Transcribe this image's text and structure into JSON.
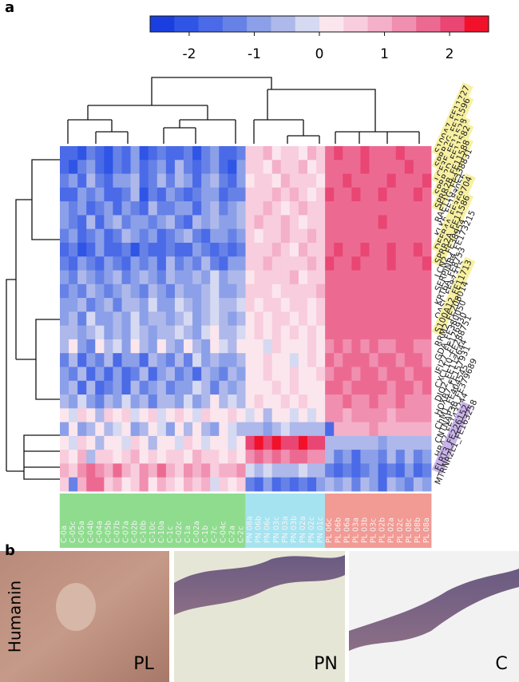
{
  "panel_a": {
    "label": "a"
  },
  "chart_data": {
    "type": "heatmap",
    "clim": [
      -2.6,
      2.6
    ],
    "cticks": [
      -2,
      -1,
      0,
      1,
      2
    ],
    "colorscale": [
      "#1a3fe0",
      "#2f55e6",
      "#4a6ae8",
      "#6782e6",
      "#8ba0e8",
      "#aeb8ea",
      "#d6d9f2",
      "#fbe6ee",
      "#f8cddd",
      "#f4b0c8",
      "#f08fb0",
      "#ec6a92",
      "#e94674",
      "#f2112a"
    ],
    "rows": [
      "S100A7_FE11727",
      "SPRR2G_FE11596",
      "LCE3E_FE11528",
      "SPRR2D_FE11582",
      "SPRR2B_FE11588",
      "RAET1G_FE338831",
      "KLK6_FE183056",
      "DEFB4A_FE369704",
      "SPRR2A_FE11586",
      "LCN2_FE38954",
      "SERPINB4_FE173215",
      "KRT6A_FE8753",
      "OASL_FE87315",
      "S100A12_FE11713",
      "RRM2_FE208014",
      "GDA_FE380050",
      "IFI27_FE126930",
      "CXCL10_FE288751",
      "DIO2_FE112644",
      "HOXB7_FE157931",
      "ChM1_FE404545",
      "CNTNAP3B_FE379689",
      "HBA2_FE143244",
      "FLRT3_FE226152",
      "MTRNR2L1_FE163258"
    ],
    "row_highlight": [
      "#f7f0a0",
      "#f7f0a0",
      "#f7f0a0",
      "#f7f0a0",
      "#f7f0a0",
      null,
      null,
      "#f7f0a0",
      "#f7f0a0",
      null,
      null,
      null,
      null,
      "#f7f0a0",
      null,
      null,
      null,
      null,
      null,
      null,
      null,
      null,
      null,
      "#c9b3ea",
      null
    ],
    "columns": [
      "C-0a",
      "C-05c",
      "C-05a",
      "C-04b",
      "C-04a",
      "C-05b",
      "C-07b",
      "C-07a",
      "C-02b",
      "C-10b",
      "C-10c",
      "C-10a",
      "C-1c",
      "C-02c",
      "C-1a",
      "C-02a",
      "C-1b",
      "C-7c",
      "C-04c",
      "C-2a",
      "C-2c",
      "PN 08a",
      "PN 06b",
      "PN 06c",
      "PN 03c",
      "PN 03a",
      "PN 03b",
      "PN 02a",
      "PN 02c",
      "PN 01c",
      "PL 06c",
      "PL 06b",
      "PL 06a",
      "PL 03a",
      "PL 03b",
      "PL 03c",
      "PL 02b",
      "PL 02a",
      "PL 02c",
      "PL 08c",
      "PL 08b",
      "PL 08a"
    ],
    "column_colors": [
      "#8fdc8f",
      "#8fdc8f",
      "#8fdc8f",
      "#8fdc8f",
      "#8fdc8f",
      "#8fdc8f",
      "#8fdc8f",
      "#8fdc8f",
      "#8fdc8f",
      "#8fdc8f",
      "#8fdc8f",
      "#8fdc8f",
      "#8fdc8f",
      "#8fdc8f",
      "#8fdc8f",
      "#8fdc8f",
      "#8fdc8f",
      "#8fdc8f",
      "#8fdc8f",
      "#8fdc8f",
      "#8fdc8f",
      "#a6e3f0",
      "#a6e3f0",
      "#a6e3f0",
      "#a6e3f0",
      "#a6e3f0",
      "#a6e3f0",
      "#a6e3f0",
      "#a6e3f0",
      "#a6e3f0",
      "#f29a94",
      "#f29a94",
      "#f29a94",
      "#f29a94",
      "#f29a94",
      "#f29a94",
      "#f29a94",
      "#f29a94",
      "#f29a94",
      "#f29a94",
      "#f29a94",
      "#f29a94"
    ],
    "values": [
      [
        -1.8,
        -1.5,
        -2.0,
        -1.2,
        -1.6,
        -1.9,
        -1.4,
        -1.7,
        -1.1,
        -2.0,
        -1.5,
        -1.3,
        -1.8,
        -1.6,
        -1.2,
        -1.9,
        -1.4,
        -1.0,
        -1.7,
        -1.5,
        -1.3,
        0.6,
        0.4,
        0.8,
        0.3,
        0.5,
        0.7,
        0.2,
        0.9,
        0.4,
        1.8,
        1.9,
        1.7,
        1.8,
        1.9,
        1.8,
        1.7,
        1.8,
        1.9,
        1.8,
        1.7,
        1.8
      ],
      [
        -1.6,
        -1.9,
        -1.3,
        -0.8,
        -1.7,
        -2.1,
        -1.2,
        -1.5,
        -0.9,
        -1.8,
        -1.4,
        -1.0,
        -1.6,
        -0.7,
        -1.3,
        -1.8,
        -1.2,
        -0.8,
        -1.5,
        -1.9,
        -1.1,
        0.5,
        0.7,
        0.3,
        0.9,
        0.6,
        0.4,
        0.8,
        0.2,
        0.5,
        1.7,
        1.8,
        1.8,
        1.6,
        1.9,
        1.7,
        1.8,
        1.8,
        1.7,
        1.9,
        1.8,
        1.7
      ],
      [
        -1.2,
        -1.0,
        -1.7,
        -0.6,
        -1.4,
        -1.8,
        -0.9,
        -1.1,
        -0.5,
        -1.6,
        -1.2,
        -0.7,
        -1.4,
        -0.4,
        -1.0,
        -1.5,
        -0.8,
        -0.6,
        -1.2,
        -1.6,
        -0.9,
        0.3,
        0.6,
        0.5,
        0.2,
        0.8,
        0.6,
        0.4,
        0.7,
        0.3,
        1.8,
        1.7,
        1.9,
        1.7,
        1.8,
        1.8,
        1.6,
        1.9,
        1.8,
        1.7,
        1.8,
        1.9
      ],
      [
        -1.5,
        -1.7,
        -1.1,
        -1.4,
        -0.9,
        -1.6,
        -1.8,
        -1.2,
        -0.7,
        -1.9,
        -1.3,
        -1.5,
        -1.0,
        -1.2,
        -1.7,
        -1.4,
        -0.9,
        -1.1,
        -1.6,
        -1.2,
        -1.4,
        0.7,
        0.5,
        0.6,
        0.8,
        0.4,
        0.9,
        0.6,
        0.3,
        0.7,
        1.9,
        1.8,
        1.8,
        1.9,
        1.7,
        1.8,
        1.9,
        1.7,
        1.8,
        1.8,
        1.9,
        1.8
      ],
      [
        -1.1,
        -1.4,
        -0.8,
        -1.6,
        -1.2,
        -1.0,
        -1.5,
        -0.9,
        -1.3,
        -1.7,
        -0.6,
        -1.2,
        -1.4,
        -0.8,
        -1.1,
        -1.6,
        -1.0,
        -0.5,
        -1.3,
        -1.0,
        -0.7,
        0.4,
        0.6,
        0.9,
        0.5,
        0.3,
        0.7,
        0.8,
        0.5,
        0.6,
        1.7,
        1.8,
        1.7,
        1.8,
        1.7,
        1.6,
        1.8,
        1.7,
        1.8,
        1.7,
        1.8,
        1.7
      ],
      [
        -0.9,
        -1.2,
        -1.5,
        -0.7,
        -1.8,
        -1.1,
        -0.6,
        -1.3,
        -1.0,
        -0.8,
        -1.4,
        -0.9,
        -0.5,
        -1.2,
        -1.5,
        -0.7,
        -1.1,
        -0.4,
        -1.0,
        -0.8,
        -0.6,
        0.5,
        0.8,
        0.4,
        0.6,
        0.9,
        0.5,
        0.3,
        0.7,
        0.6,
        1.6,
        1.7,
        1.8,
        1.7,
        1.8,
        1.7,
        1.9,
        1.8,
        1.7,
        1.8,
        1.7,
        1.6
      ],
      [
        -1.4,
        -1.0,
        -1.6,
        -1.2,
        -0.8,
        -1.5,
        -1.3,
        -0.7,
        -1.1,
        -1.4,
        -0.9,
        -1.6,
        -1.2,
        -1.0,
        -0.6,
        -1.3,
        -1.5,
        -0.8,
        -1.0,
        -1.2,
        -0.9,
        0.6,
        0.3,
        0.7,
        0.5,
        0.8,
        0.4,
        0.6,
        0.9,
        0.5,
        1.7,
        1.6,
        1.7,
        1.8,
        1.6,
        1.7,
        1.7,
        1.8,
        1.6,
        1.7,
        1.8,
        1.7
      ],
      [
        -1.7,
        -1.3,
        -1.9,
        -1.5,
        -1.1,
        -1.8,
        -1.6,
        -1.4,
        -1.9,
        -1.2,
        -1.7,
        -1.5,
        -1.3,
        -1.8,
        -1.6,
        -1.0,
        -1.4,
        -1.7,
        -1.2,
        -1.5,
        -1.3,
        0.4,
        0.7,
        0.5,
        0.9,
        0.6,
        0.3,
        0.8,
        0.5,
        0.7,
        1.8,
        1.9,
        1.8,
        1.7,
        1.9,
        1.8,
        1.8,
        1.9,
        1.7,
        1.8,
        1.9,
        1.8
      ],
      [
        -1.3,
        -1.6,
        -1.0,
        -1.4,
        -1.7,
        -0.9,
        -1.2,
        -1.5,
        -0.8,
        -1.3,
        -1.1,
        -1.6,
        -0.7,
        -1.4,
        -1.0,
        -1.2,
        -0.6,
        -1.3,
        -1.5,
        -0.9,
        -1.1,
        0.6,
        0.5,
        0.8,
        0.4,
        0.7,
        0.6,
        0.5,
        0.8,
        0.4,
        1.9,
        1.8,
        1.7,
        1.9,
        1.8,
        1.7,
        1.8,
        1.9,
        1.8,
        1.7,
        1.8,
        1.9
      ],
      [
        -1.0,
        -1.3,
        -0.6,
        -1.1,
        -1.4,
        -0.8,
        -0.5,
        -1.2,
        -0.9,
        -0.4,
        -1.0,
        -1.3,
        -0.6,
        -0.9,
        -1.1,
        -0.5,
        -0.8,
        -0.3,
        -1.0,
        -0.7,
        -0.5,
        0.3,
        0.6,
        0.4,
        0.7,
        0.5,
        0.8,
        0.2,
        0.6,
        0.4,
        1.6,
        1.7,
        1.6,
        1.7,
        1.8,
        1.6,
        1.7,
        1.6,
        1.7,
        1.8,
        1.6,
        1.7
      ],
      [
        -1.2,
        -0.9,
        -1.4,
        -0.7,
        -1.1,
        -1.3,
        -0.8,
        -0.4,
        -1.0,
        -1.2,
        -0.6,
        -0.9,
        -1.3,
        -0.5,
        -0.8,
        -1.1,
        -0.7,
        -0.3,
        -0.9,
        -1.0,
        -0.6,
        0.5,
        0.4,
        0.6,
        0.3,
        0.7,
        0.5,
        0.6,
        0.4,
        0.8,
        1.7,
        1.6,
        1.8,
        1.7,
        1.6,
        1.7,
        1.8,
        1.7,
        1.6,
        1.7,
        1.7,
        1.8
      ],
      [
        -0.8,
        -1.1,
        -0.5,
        -1.3,
        -0.9,
        -0.6,
        -1.2,
        -0.4,
        -0.7,
        -1.0,
        -0.3,
        -0.8,
        -1.1,
        -0.2,
        -0.6,
        -0.9,
        -0.4,
        -0.1,
        -0.7,
        -0.5,
        -0.3,
        0.4,
        0.2,
        0.5,
        0.6,
        0.3,
        0.4,
        0.7,
        0.3,
        0.5,
        1.5,
        1.6,
        1.5,
        1.6,
        1.7,
        1.5,
        1.6,
        1.5,
        1.6,
        1.7,
        1.5,
        1.6
      ],
      [
        -1.0,
        -0.6,
        -1.2,
        -0.3,
        -0.9,
        -1.1,
        -0.5,
        -0.8,
        -0.2,
        -1.0,
        -0.7,
        -0.4,
        -0.9,
        -0.6,
        -0.1,
        -0.8,
        -0.5,
        -0.2,
        -0.7,
        -0.9,
        -0.4,
        0.3,
        0.5,
        0.2,
        0.4,
        0.6,
        0.3,
        0.5,
        0.2,
        0.4,
        1.6,
        1.5,
        1.6,
        1.7,
        1.5,
        1.6,
        1.6,
        1.5,
        1.7,
        1.6,
        1.5,
        1.6
      ],
      [
        -0.7,
        -0.4,
        -1.0,
        -0.6,
        -0.2,
        -0.9,
        -0.5,
        -0.8,
        -0.3,
        -0.6,
        -1.1,
        -0.4,
        -0.7,
        -0.2,
        -0.5,
        -0.9,
        -0.3,
        0.1,
        -0.6,
        -0.4,
        -0.2,
        0.2,
        0.4,
        0.3,
        0.5,
        0.2,
        0.6,
        0.3,
        0.4,
        0.2,
        1.5,
        1.6,
        1.7,
        1.5,
        1.6,
        1.5,
        1.7,
        1.6,
        1.5,
        1.6,
        1.7,
        1.5
      ],
      [
        -0.4,
        0.1,
        -0.8,
        -1.2,
        0.2,
        -0.6,
        -0.3,
        -1.0,
        0.3,
        -0.5,
        -0.9,
        0.0,
        -0.7,
        -1.1,
        0.1,
        -0.4,
        -0.8,
        0.2,
        -0.3,
        -0.6,
        0.0,
        0.1,
        0.3,
        -0.1,
        0.4,
        0.2,
        0.0,
        0.3,
        0.5,
        0.1,
        1.4,
        1.5,
        1.3,
        1.6,
        1.4,
        1.5,
        1.3,
        1.4,
        1.5,
        1.6,
        1.4,
        1.3
      ],
      [
        -1.3,
        -0.5,
        -1.6,
        -0.9,
        -1.2,
        -0.4,
        -1.5,
        -0.8,
        -1.1,
        -1.7,
        -0.6,
        -1.0,
        -1.4,
        -0.7,
        -1.2,
        -0.3,
        -0.9,
        -0.5,
        -1.1,
        -0.8,
        -0.4,
        0.2,
        0.0,
        0.4,
        0.1,
        0.3,
        -0.2,
        0.2,
        0.5,
        0.0,
        1.5,
        1.4,
        1.5,
        1.6,
        1.5,
        1.3,
        1.5,
        1.6,
        1.4,
        1.5,
        1.5,
        1.4
      ],
      [
        -0.9,
        -1.4,
        -0.6,
        -1.7,
        -1.0,
        -1.5,
        -0.8,
        -1.8,
        -1.2,
        -0.7,
        -1.6,
        -1.1,
        -0.5,
        -1.3,
        -0.9,
        -1.6,
        -0.4,
        -1.0,
        -1.4,
        -0.6,
        -0.8,
        0.3,
        0.1,
        0.5,
        0.2,
        0.0,
        0.4,
        0.3,
        0.1,
        0.6,
        1.4,
        1.6,
        1.5,
        1.4,
        1.6,
        1.5,
        1.4,
        1.5,
        1.6,
        1.4,
        1.5,
        1.6
      ],
      [
        -1.1,
        -0.7,
        -1.5,
        -0.4,
        -1.8,
        -1.2,
        -0.9,
        -1.6,
        -0.5,
        -1.3,
        -1.0,
        -0.6,
        -1.4,
        -0.8,
        -1.1,
        -0.3,
        -0.7,
        -1.2,
        -0.5,
        -0.9,
        -0.6,
        0.0,
        0.3,
        0.1,
        0.4,
        0.2,
        0.5,
        0.0,
        0.3,
        0.2,
        1.6,
        1.5,
        1.4,
        1.5,
        1.6,
        1.5,
        1.5,
        1.4,
        1.6,
        1.5,
        1.4,
        1.5
      ],
      [
        -0.6,
        -1.0,
        -0.3,
        -0.8,
        -1.4,
        -0.5,
        -1.1,
        -0.2,
        -0.9,
        -0.6,
        -1.3,
        -0.4,
        -0.7,
        -1.0,
        -0.2,
        -0.8,
        -0.5,
        0.1,
        -0.6,
        -0.3,
        -0.5,
        0.2,
        0.4,
        0.0,
        0.3,
        0.5,
        0.1,
        0.4,
        0.2,
        0.3,
        1.3,
        1.4,
        1.5,
        1.3,
        1.4,
        1.6,
        1.4,
        1.3,
        1.5,
        1.4,
        1.3,
        1.4
      ],
      [
        0.3,
        -0.2,
        0.5,
        0.1,
        -0.4,
        0.4,
        0.0,
        0.6,
        -0.3,
        0.2,
        0.5,
        -0.1,
        0.3,
        0.7,
        0.1,
        -0.2,
        0.4,
        0.2,
        0.0,
        0.5,
        0.3,
        -0.2,
        0.1,
        -0.4,
        0.2,
        0.0,
        -0.3,
        0.1,
        -0.1,
        0.2,
        1.2,
        1.3,
        1.1,
        1.4,
        1.2,
        1.3,
        1.2,
        1.1,
        1.3,
        1.4,
        1.2,
        1.3
      ],
      [
        -0.8,
        0.2,
        -1.0,
        -0.4,
        0.3,
        -0.7,
        -0.2,
        0.1,
        -0.9,
        -0.5,
        0.2,
        -0.3,
        -1.1,
        0.0,
        -0.6,
        0.3,
        -0.4,
        -0.8,
        0.1,
        -0.2,
        -0.5,
        -0.6,
        -0.4,
        -0.8,
        -0.5,
        -0.3,
        -0.7,
        -0.4,
        -0.6,
        -0.5,
        -1.6,
        1.0,
        1.1,
        0.9,
        1.0,
        1.2,
        0.9,
        1.1,
        1.0,
        0.8,
        1.1,
        1.0
      ],
      [
        0.2,
        -0.3,
        0.4,
        0.1,
        -0.5,
        0.3,
        0.0,
        -0.2,
        0.5,
        0.2,
        -0.4,
        0.1,
        0.3,
        -0.1,
        0.4,
        0.0,
        -0.3,
        0.2,
        0.1,
        -0.2,
        0.3,
        2.2,
        2.3,
        2.1,
        2.4,
        2.2,
        2.0,
        2.3,
        2.1,
        2.2,
        -0.6,
        -0.5,
        -0.7,
        -0.4,
        -0.6,
        -0.5,
        -0.8,
        -0.5,
        -0.6,
        -0.4,
        -0.7,
        -0.5
      ],
      [
        0.6,
        0.3,
        0.8,
        -0.5,
        0.5,
        0.7,
        0.2,
        0.4,
        0.9,
        0.1,
        0.6,
        0.3,
        0.5,
        0.7,
        0.2,
        0.8,
        0.4,
        0.6,
        0.1,
        0.5,
        0.3,
        1.4,
        1.6,
        1.2,
        1.8,
        1.3,
        1.5,
        1.7,
        1.2,
        1.4,
        -0.4,
        -1.2,
        -0.8,
        -1.5,
        -1.1,
        -0.9,
        -1.4,
        -0.7,
        -1.3,
        -0.6,
        -1.2,
        -0.9
      ],
      [
        1.0,
        0.6,
        1.4,
        1.6,
        1.2,
        0.8,
        1.5,
        1.1,
        0.7,
        1.3,
        0.9,
        1.6,
        1.0,
        0.5,
        1.2,
        0.8,
        1.4,
        0.6,
        1.1,
        0.9,
        1.3,
        -0.3,
        -0.6,
        -0.2,
        -0.5,
        -0.4,
        -0.7,
        -0.3,
        -0.5,
        -0.4,
        -1.3,
        -1.6,
        -1.2,
        -1.8,
        -1.4,
        -1.0,
        -1.7,
        -1.3,
        -1.5,
        -1.1,
        -1.6,
        -1.2
      ],
      [
        0.4,
        -1.2,
        0.8,
        1.5,
        1.8,
        0.6,
        1.0,
        0.3,
        0.7,
        1.2,
        0.2,
        0.9,
        0.5,
        0.1,
        1.1,
        0.4,
        0.8,
        -0.2,
        0.6,
        0.3,
        0.5,
        -1.4,
        -1.8,
        -1.0,
        -1.6,
        -1.2,
        -1.7,
        -1.3,
        -1.5,
        -1.1,
        -0.6,
        -0.9,
        -0.4,
        -1.2,
        -0.7,
        -1.0,
        -1.5,
        -0.5,
        -0.8,
        -1.3,
        -0.6,
        -0.9
      ]
    ]
  },
  "panel_b": {
    "label": "b",
    "stain": "Humanin",
    "images": [
      "PL",
      "PN",
      "C"
    ]
  }
}
